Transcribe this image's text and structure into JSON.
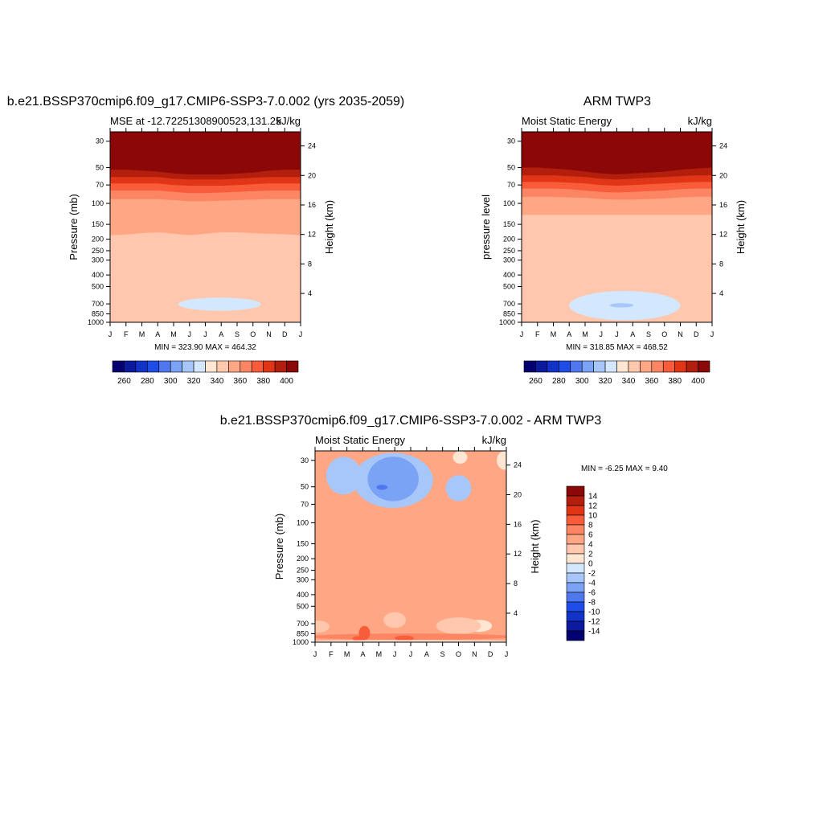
{
  "chart_data": [
    {
      "type": "heatmap",
      "title": "b.e21.BSSP370cmip6.f09_g17.CMIP6-SSP3-7.0.002 (yrs 2035-2059)",
      "subtitle_left": "MSE at -12.72251308900523,131.25",
      "units": "kJ/kg",
      "ylabel": "Pressure (mb)",
      "ylabel_right": "Height (km)",
      "x_ticks": [
        "J",
        "F",
        "M",
        "A",
        "M",
        "J",
        "J",
        "A",
        "S",
        "O",
        "N",
        "D",
        "J"
      ],
      "y_ticks": [
        30,
        50,
        70,
        100,
        150,
        200,
        250,
        300,
        400,
        500,
        700,
        850,
        1000
      ],
      "height_ticks": [
        4,
        8,
        12,
        16,
        20,
        24
      ],
      "ylim": [
        1000,
        25
      ],
      "y_scale": "log",
      "min_max_text": "MIN = 323.90 MAX = 464.32",
      "colorbar_ticks": [
        260,
        280,
        300,
        320,
        340,
        360,
        380,
        400
      ],
      "colorbar_orientation": "horizontal",
      "bands": [
        {
          "level": 330,
          "color": "#d3e8ff"
        },
        {
          "level": 340,
          "color": "#ffe6d2",
          "p_bottom": [
            560,
            560,
            540,
            500,
            460,
            440,
            440,
            440,
            450,
            470,
            500,
            540,
            560
          ]
        },
        {
          "level": 350,
          "color": "#ffc7ae",
          "p_bottom": [
            1000,
            1000,
            1000,
            1000,
            1000,
            1000,
            1000,
            1000,
            1000,
            1000,
            1000,
            1000,
            1000
          ]
        },
        {
          "level": 360,
          "color": "#ffa784",
          "p_bottom": [
            185,
            183,
            178,
            175,
            180,
            185,
            180,
            175,
            175,
            178,
            180,
            182,
            185
          ]
        },
        {
          "level": 370,
          "color": "#fc8663",
          "p_bottom": [
            92,
            92,
            92,
            92,
            94,
            96,
            96,
            95,
            94,
            93,
            92,
            92,
            92
          ]
        },
        {
          "level": 380,
          "color": "#f95c3a",
          "p_bottom": [
            78,
            78,
            78,
            78,
            80,
            82,
            82,
            81,
            80,
            79,
            78,
            78,
            78
          ]
        },
        {
          "level": 390,
          "color": "#e03517",
          "p_bottom": [
            68,
            68,
            68,
            68,
            70,
            71,
            71,
            71,
            70,
            69,
            68,
            68,
            68
          ]
        },
        {
          "level": 400,
          "color": "#b31f0c",
          "p_bottom": [
            60,
            60,
            60,
            60,
            62,
            63,
            63,
            63,
            62,
            61,
            60,
            60,
            60
          ]
        },
        {
          "level": 410,
          "color": "#8c0707",
          "p_bottom": [
            52,
            52,
            53,
            54,
            56,
            57,
            57,
            57,
            56,
            55,
            53,
            52,
            52
          ]
        }
      ],
      "closed_regions": [
        {
          "level": 330,
          "color": "#d3e8ff",
          "center_month": 6.9,
          "center_p": 700,
          "half_width_months": 2.6,
          "p_top": 620,
          "p_bottom": 800
        },
        {
          "level": 350,
          "color": "#ffc7ae",
          "center_month": 0.0,
          "center_p": 890,
          "half_width_months": 1.2,
          "p_top": 820,
          "p_bottom": 960
        },
        {
          "level": 350,
          "color": "#ffc7ae",
          "center_month": 12.0,
          "center_p": 890,
          "half_width_months": 1.2,
          "p_top": 820,
          "p_bottom": 960
        }
      ]
    },
    {
      "type": "heatmap",
      "title": "ARM TWP3",
      "subtitle_left": "Moist Static Energy",
      "units": "kJ/kg",
      "ylabel": "pressure level",
      "ylabel_right": "Height (km)",
      "x_ticks": [
        "J",
        "F",
        "M",
        "A",
        "M",
        "J",
        "J",
        "A",
        "S",
        "O",
        "N",
        "D",
        "J"
      ],
      "y_ticks": [
        30,
        50,
        70,
        100,
        150,
        200,
        250,
        300,
        400,
        500,
        700,
        850,
        1000
      ],
      "height_ticks": [
        4,
        8,
        12,
        16,
        20,
        24
      ],
      "ylim": [
        1000,
        25
      ],
      "y_scale": "log",
      "min_max_text": "MIN = 318.85 MAX = 468.52",
      "colorbar_ticks": [
        260,
        280,
        300,
        320,
        340,
        360,
        380,
        400
      ],
      "colorbar_orientation": "horizontal",
      "bands": [
        {
          "level": 330,
          "color": "#d3e8ff"
        },
        {
          "level": 340,
          "color": "#ffe6d2",
          "p_bottom": [
            440,
            440,
            420,
            390,
            360,
            335,
            330,
            330,
            330,
            340,
            370,
            420,
            440
          ]
        },
        {
          "level": 350,
          "color": "#ffc7ae",
          "p_bottom": [
            1000,
            1000,
            1000,
            1000,
            1000,
            1000,
            1000,
            1000,
            1000,
            1000,
            1000,
            1000,
            1000
          ]
        },
        {
          "level": 360,
          "color": "#ffa784",
          "p_bottom": [
            125,
            125,
            125,
            125,
            125,
            125,
            125,
            125,
            125,
            125,
            125,
            125,
            125
          ]
        },
        {
          "level": 370,
          "color": "#fc8663",
          "p_bottom": [
            88,
            88,
            88,
            89,
            90,
            92,
            93,
            93,
            92,
            91,
            89,
            88,
            88
          ]
        },
        {
          "level": 380,
          "color": "#f95c3a",
          "p_bottom": [
            75,
            75,
            75,
            76,
            78,
            80,
            81,
            80,
            79,
            78,
            76,
            75,
            75
          ]
        },
        {
          "level": 390,
          "color": "#e03517",
          "p_bottom": [
            66,
            66,
            66,
            67,
            68,
            70,
            71,
            70,
            69,
            68,
            67,
            66,
            66
          ]
        },
        {
          "level": 400,
          "color": "#b31f0c",
          "p_bottom": [
            58,
            58,
            58,
            59,
            60,
            62,
            63,
            62,
            61,
            60,
            59,
            58,
            58
          ]
        },
        {
          "level": 410,
          "color": "#8c0707",
          "p_bottom": [
            50,
            50,
            51,
            52,
            54,
            56,
            57,
            56,
            55,
            54,
            52,
            51,
            50
          ]
        }
      ],
      "closed_regions": [
        {
          "level": 330,
          "color": "#d3e8ff",
          "center_month": 6.5,
          "center_p": 690,
          "half_width_months": 3.5,
          "p_top": 545,
          "p_bottom": 960
        },
        {
          "level": 320,
          "color": "#a7c7fa",
          "center_month": 6.3,
          "center_p": 720,
          "half_width_months": 0.75,
          "p_top": 690,
          "p_bottom": 750
        }
      ]
    },
    {
      "type": "heatmap",
      "title": "b.e21.BSSP370cmip6.f09_g17.CMIP6-SSP3-7.0.002 - ARM TWP3",
      "subtitle_left": "Moist Static Energy",
      "units": "kJ/kg",
      "ylabel": "Pressure (mb)",
      "ylabel_right": "Height (km)",
      "x_ticks": [
        "J",
        "F",
        "M",
        "A",
        "M",
        "J",
        "J",
        "A",
        "S",
        "O",
        "N",
        "D",
        "J"
      ],
      "y_ticks": [
        30,
        50,
        70,
        100,
        150,
        200,
        250,
        300,
        400,
        500,
        700,
        850,
        1000
      ],
      "height_ticks": [
        4,
        8,
        12,
        16,
        20,
        24
      ],
      "ylim": [
        1000,
        25
      ],
      "y_scale": "log",
      "min_max_text": "MIN =  -6.25 MAX =   9.40",
      "colorbar_ticks": [
        14,
        12,
        10,
        8,
        6,
        4,
        2,
        0,
        -2,
        -4,
        -6,
        -8,
        -10,
        -12,
        -14
      ],
      "colorbar_orientation": "vertical",
      "bands": [
        {
          "level": 0,
          "color": "#d3e8ff"
        },
        {
          "level": 2,
          "color": "#ffe6d2",
          "p_bottom": [
            88,
            88,
            88,
            89,
            90,
            90,
            90,
            90,
            90,
            89,
            88,
            88,
            88
          ]
        },
        {
          "level": 4,
          "color": "#ffc7ae",
          "p_bottom": [
            100,
            100,
            101,
            101,
            102,
            102,
            102,
            102,
            101,
            101,
            100,
            100,
            100
          ]
        },
        {
          "level": 6,
          "color": "#ffa784",
          "p_bottom": [
            1000,
            1000,
            1000,
            1000,
            1000,
            1000,
            1000,
            1000,
            1000,
            1000,
            1000,
            1000,
            1000
          ]
        }
      ],
      "closed_regions": [
        {
          "level": -2,
          "color": "#a7c7fa",
          "center_month": 4.9,
          "center_p": 50,
          "half_width_months": 2.5,
          "p_top": 26,
          "p_bottom": 75
        },
        {
          "level": -4,
          "color": "#7ba3f5",
          "center_month": 4.9,
          "center_p": 48,
          "half_width_months": 1.6,
          "p_top": 28,
          "p_bottom": 66
        },
        {
          "level": -6,
          "color": "#4f78ee",
          "center_month": 4.2,
          "center_p": 50,
          "half_width_months": 0.35,
          "p_top": 48,
          "p_bottom": 53
        },
        {
          "level": -2,
          "color": "#a7c7fa",
          "center_month": 1.8,
          "center_p": 44,
          "half_width_months": 1.1,
          "p_top": 28,
          "p_bottom": 58
        },
        {
          "level": -2,
          "color": "#a7c7fa",
          "center_month": 9.0,
          "center_p": 52,
          "half_width_months": 0.8,
          "p_top": 40,
          "p_bottom": 66
        },
        {
          "level": 2,
          "color": "#ffe6d2",
          "center_month": 9.1,
          "center_p": 28,
          "half_width_months": 0.45,
          "p_top": 25,
          "p_bottom": 32
        },
        {
          "level": 2,
          "color": "#ffe6d2",
          "center_month": 11.9,
          "center_p": 30,
          "half_width_months": 0.5,
          "p_top": 25,
          "p_bottom": 36
        },
        {
          "level": 6,
          "color": "#ffa784",
          "center_month": 1.9,
          "center_p": 180,
          "half_width_months": 1.6,
          "p_top": 128,
          "p_bottom": 260
        },
        {
          "level": 6,
          "color": "#ffa784",
          "center_month": 7.0,
          "center_p": 360,
          "half_width_months": 2.8,
          "p_top": 130,
          "p_bottom": 800
        },
        {
          "level": 6,
          "color": "#ffa784",
          "center_month": 2.3,
          "center_p": 580,
          "half_width_months": 2.3,
          "p_top": 420,
          "p_bottom": 800
        },
        {
          "level": 4,
          "color": "#ffc7ae",
          "center_month": 0.2,
          "center_p": 740,
          "half_width_months": 0.7,
          "p_top": 660,
          "p_bottom": 830
        },
        {
          "level": 4,
          "color": "#ffc7ae",
          "center_month": 5.0,
          "center_p": 640,
          "half_width_months": 0.7,
          "p_top": 560,
          "p_bottom": 760
        },
        {
          "level": 2,
          "color": "#ffe6d2",
          "center_month": 10.3,
          "center_p": 720,
          "half_width_months": 0.8,
          "p_top": 650,
          "p_bottom": 820
        },
        {
          "level": 4,
          "color": "#ffc7ae",
          "center_month": 9.0,
          "center_p": 760,
          "half_width_months": 1.4,
          "p_top": 620,
          "p_bottom": 860
        },
        {
          "level": 8,
          "color": "#fc8663",
          "center_month": 6.0,
          "center_p": 900,
          "half_width_months": 6.5,
          "p_top": 845,
          "p_bottom": 960
        },
        {
          "level": 10,
          "color": "#f95c3a",
          "center_month": 3.1,
          "center_p": 860,
          "half_width_months": 0.35,
          "p_top": 730,
          "p_bottom": 960
        },
        {
          "level": 10,
          "color": "#f95c3a",
          "center_month": 5.6,
          "center_p": 930,
          "half_width_months": 0.6,
          "p_top": 880,
          "p_bottom": 975
        },
        {
          "level": 10,
          "color": "#f95c3a",
          "center_month": 2.7,
          "center_p": 935,
          "half_width_months": 0.35,
          "p_top": 890,
          "p_bottom": 975
        },
        {
          "level": 2,
          "color": "#ffe6d2",
          "center_month": 6.0,
          "center_p": 985,
          "half_width_months": 6.5,
          "p_top": 965,
          "p_bottom": 1000
        }
      ]
    }
  ]
}
